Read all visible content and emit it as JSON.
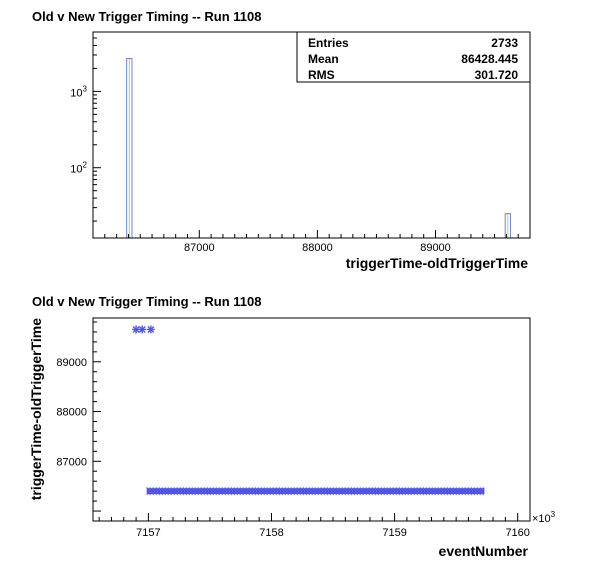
{
  "chart_data": [
    {
      "type": "bar",
      "title": "Old v New Trigger Timing -- Run 1108",
      "xlabel": "triggerTime-oldTriggerTime",
      "ylabel": "",
      "x_scale": "linear",
      "y_scale": "log",
      "xlim": [
        86100,
        89800
      ],
      "ylim": [
        12,
        6000
      ],
      "x_ticks": [
        "87000",
        "88000",
        "89000"
      ],
      "y_ticks": [
        {
          "value": 100,
          "base": "10",
          "exp": "2"
        },
        {
          "value": 1000,
          "base": "10",
          "exp": "3"
        }
      ],
      "bars": [
        {
          "x0": 86385,
          "x1": 86430,
          "value": 2700
        },
        {
          "x0": 89590,
          "x1": 89635,
          "value": 25
        }
      ],
      "bar_color": "#6d88c8",
      "stats": [
        {
          "label": "Entries",
          "value": "2733"
        },
        {
          "label": "Mean",
          "value": "86428.445"
        },
        {
          "label": "RMS",
          "value": "301.720"
        }
      ]
    },
    {
      "type": "scatter",
      "title": "Old v New Trigger Timing -- Run 1108",
      "xlabel": "eventNumber",
      "ylabel": "triggerTime-oldTriggerTime",
      "xlim": [
        7156.55,
        7160.1
      ],
      "ylim": [
        85800,
        89880
      ],
      "x_multiplier": "×10",
      "x_multiplier_exp": "3",
      "x_ticks": [
        "7157",
        "7158",
        "7159",
        "7160"
      ],
      "y_ticks": [
        "87000",
        "88000",
        "89000"
      ],
      "point_color": "#5555dd",
      "points": [
        {
          "x": 7156.9,
          "y": 89650
        },
        {
          "x": 7156.95,
          "y": 89650
        },
        {
          "x": 7157.02,
          "y": 89650
        }
      ],
      "dense_band": {
        "x_start": 7156.99,
        "x_end": 7159.73,
        "y": 86400
      }
    }
  ]
}
